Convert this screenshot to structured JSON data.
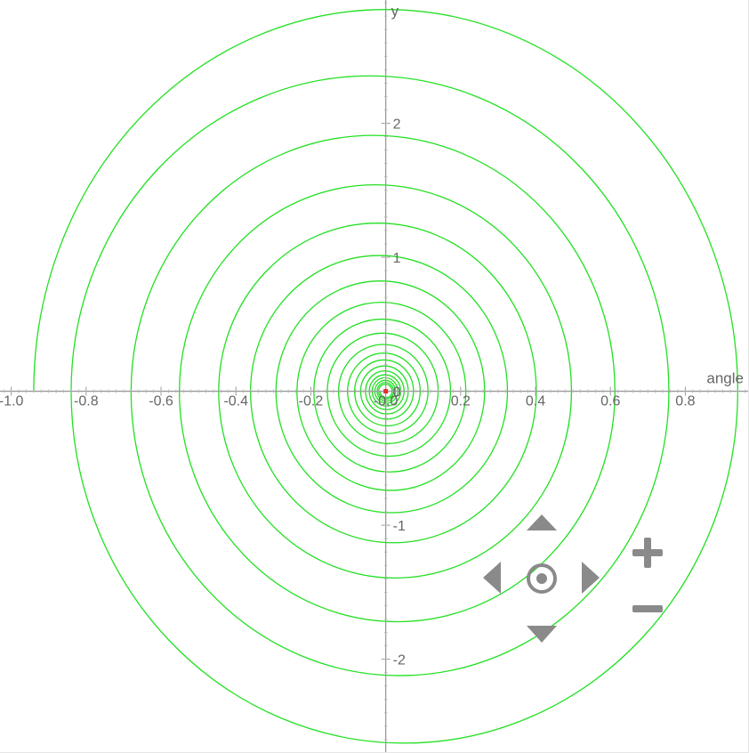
{
  "chart_data": {
    "type": "line",
    "title": "",
    "xlabel": "angle",
    "ylabel": "y",
    "xlim": [
      -1.03,
      0.97
    ],
    "ylim": [
      -2.7,
      2.92
    ],
    "x_ticks": [
      -1.0,
      -0.8,
      -0.6,
      -0.4,
      -0.2,
      -0.0,
      0.2,
      0.4,
      0.6,
      0.8
    ],
    "x_tick_labels": [
      "-1.0",
      "-0.8",
      "-0.6",
      "-0.4",
      "-0.2",
      "-0.0",
      "0.2",
      "0.4",
      "0.6",
      "0.8"
    ],
    "y_ticks": [
      2,
      1,
      0,
      -1,
      -2
    ],
    "y_tick_labels": [
      "2",
      "1",
      "0",
      "-1",
      "-2"
    ],
    "grid": false,
    "series": [
      {
        "kind": "polar-spiral",
        "x_radii": [
          0.94,
          0.84,
          0.756,
          0.68,
          0.612,
          0.551,
          0.496,
          0.446,
          0.402,
          0.361,
          0.325,
          0.293,
          0.264,
          0.237,
          0.214,
          0.192,
          0.173,
          0.156,
          0.14,
          0.126,
          0.113,
          0.102,
          0.092,
          0.083,
          0.074,
          0.067,
          0.06,
          0.054,
          0.049,
          0.044,
          0.04,
          0.036,
          0.032,
          0.029,
          0.026,
          0.023,
          0.021,
          0.019,
          0.017,
          0.015
        ],
        "y_radii": [
          2.85,
          2.48,
          2.23,
          2.01,
          1.81,
          1.63,
          1.46,
          1.32,
          1.19,
          1.07,
          0.96,
          0.86,
          0.78,
          0.7,
          0.63,
          0.57,
          0.51,
          0.46,
          0.41,
          0.37,
          0.33,
          0.3,
          0.27,
          0.245,
          0.22,
          0.198,
          0.178,
          0.16,
          0.144,
          0.13,
          0.117,
          0.105,
          0.095,
          0.085,
          0.077,
          0.069,
          0.062,
          0.056,
          0.05,
          0.045
        ],
        "color": "#22e022"
      }
    ],
    "points": [
      {
        "x": 0.0,
        "y": 0.0,
        "color": "#e03030"
      }
    ]
  },
  "colors": {
    "axis": "#9a9a9a",
    "controls": "#8a8a8a",
    "curve": "#22e022",
    "origin_point": "#e03030"
  },
  "controls": {
    "pan_up": "up-arrow-icon",
    "pan_down": "down-arrow-icon",
    "pan_left": "left-arrow-icon",
    "pan_right": "right-arrow-icon",
    "reset": "target-icon",
    "zoom_in": "plus-icon",
    "zoom_out": "minus-icon"
  }
}
